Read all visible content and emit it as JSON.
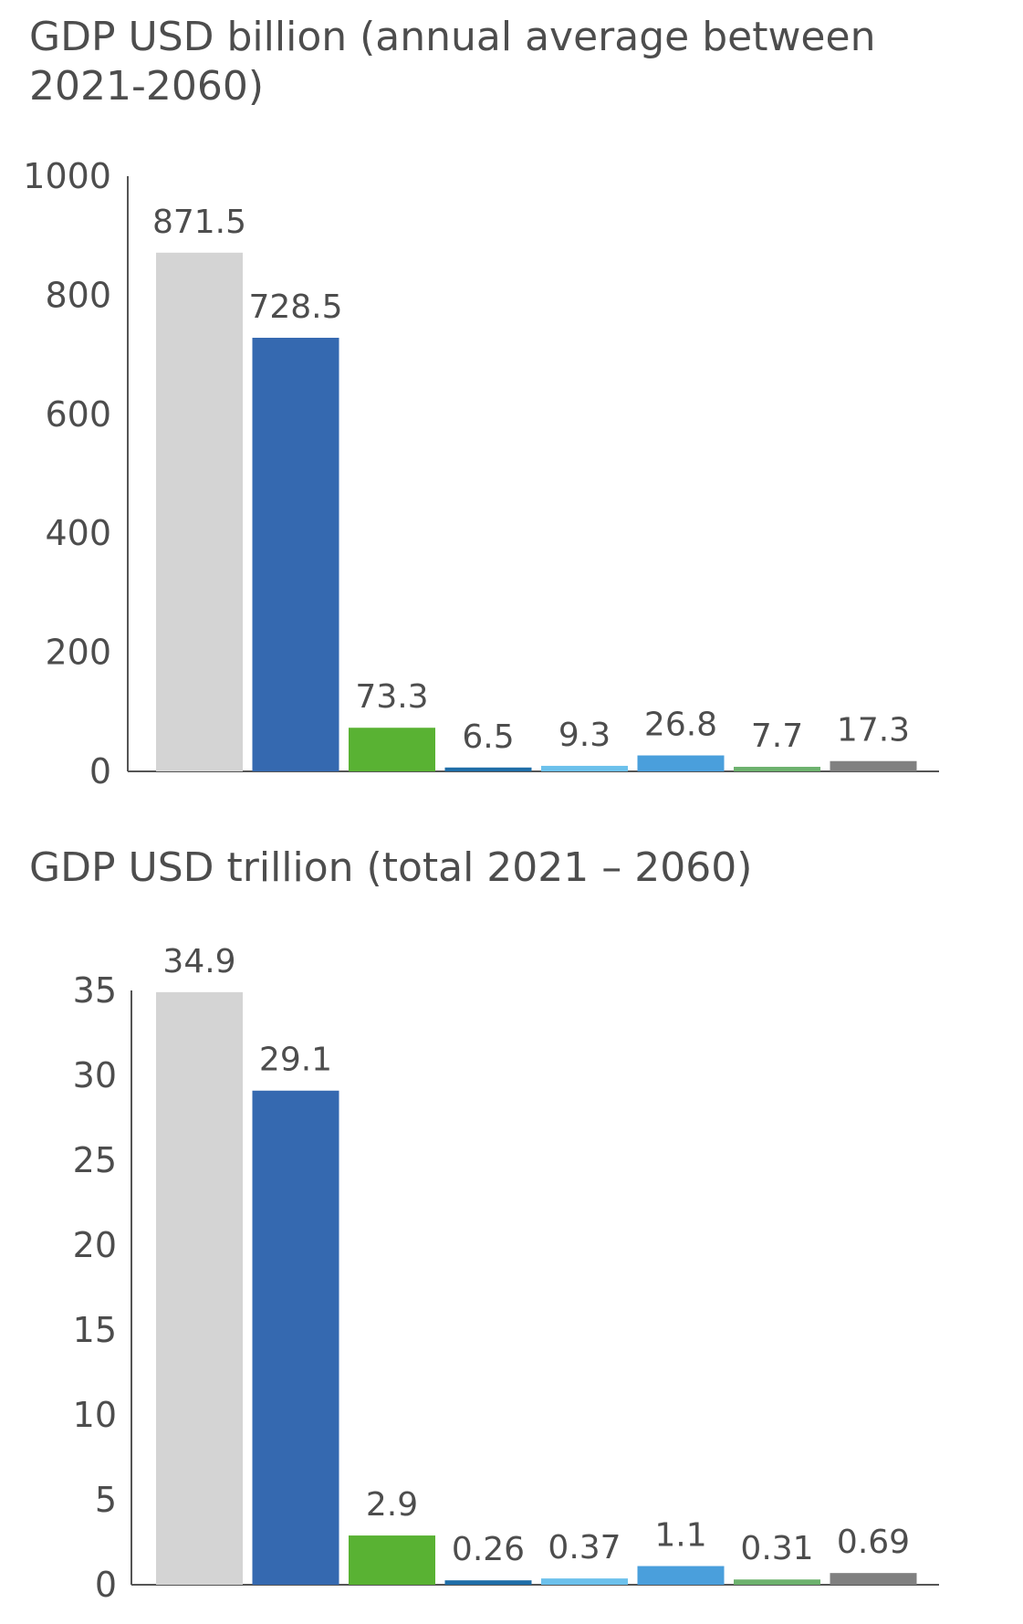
{
  "chart_data": [
    {
      "type": "bar",
      "title": "GDP USD billion (annual average between 2021-2060)",
      "values": [
        871.5,
        728.5,
        73.3,
        6.5,
        9.3,
        26.8,
        7.7,
        17.3
      ],
      "data_labels": [
        "871.5",
        "728.5",
        "73.3",
        "6.5",
        "9.3",
        "26.8",
        "7.7",
        "17.3"
      ],
      "ylim": [
        0,
        1000
      ],
      "yticks": [
        "0",
        "200",
        "400",
        "600",
        "800",
        "1000"
      ],
      "colors": [
        "#d4d4d4",
        "#3569b0",
        "#59b233",
        "#1f6ea8",
        "#6cc1ec",
        "#4a9fdc",
        "#6db26e",
        "#808080"
      ],
      "grid": false
    },
    {
      "type": "bar",
      "title": "GDP USD trillion (total 2021 – 2060)",
      "values": [
        34.9,
        29.1,
        2.9,
        0.26,
        0.37,
        1.1,
        0.31,
        0.69
      ],
      "data_labels": [
        "34.9",
        "29.1",
        "2.9",
        "0.26",
        "0.37",
        "1.1",
        "0.31",
        "0.69"
      ],
      "ylim": [
        0,
        35
      ],
      "yticks": [
        "0",
        "5",
        "10",
        "15",
        "20",
        "25",
        "30",
        "35"
      ],
      "colors": [
        "#d4d4d4",
        "#3569b0",
        "#59b233",
        "#1f6ea8",
        "#6cc1ec",
        "#4a9fdc",
        "#6db26e",
        "#808080"
      ],
      "grid": false
    }
  ]
}
